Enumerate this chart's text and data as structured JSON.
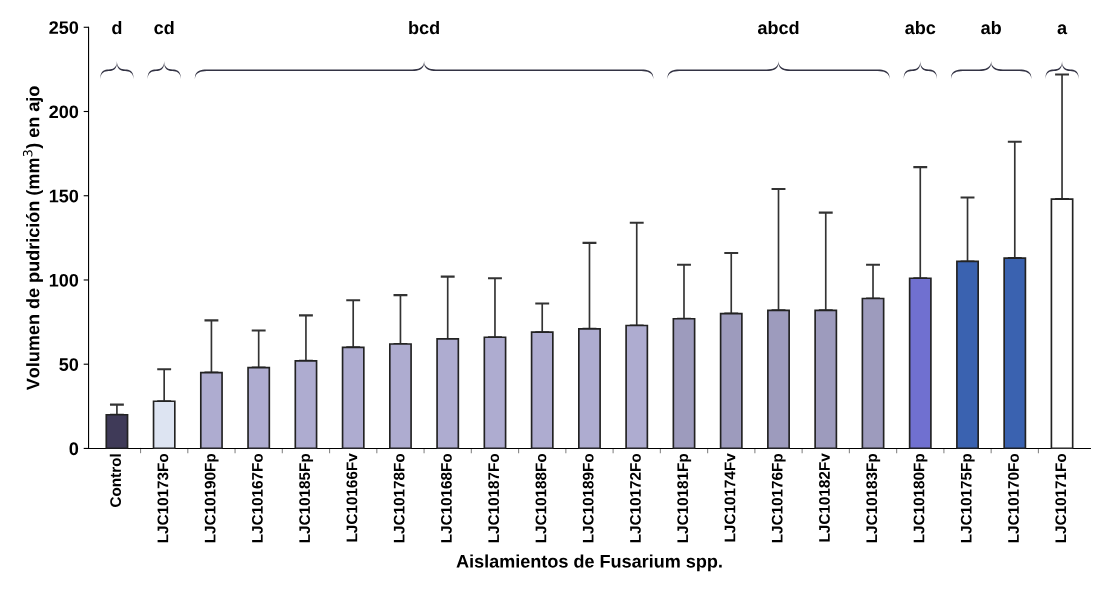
{
  "chart_data": {
    "type": "bar",
    "xlabel": "Aislamientos de Fusarium spp.",
    "ylabel": "Volumen de pudrición (mm$^{3}$) en ajo",
    "categories": [
      "Control",
      "LJC10173Fo",
      "LJC10190Fp",
      "LJC10167Fo",
      "LJC10185Fp",
      "LJC10166Fv",
      "LJC10178Fo",
      "LJC10168Fo",
      "LJC10187Fo",
      "LJC10188Fo",
      "LJC10189Fo",
      "LJC10172Fo",
      "LJC10181Fp",
      "LJC10174Fv",
      "LJC10176Fp",
      "LJC10182Fv",
      "LJC10183Fp",
      "LJC10180Fp",
      "LJC10175Fp",
      "LJC10170Fo",
      "LJC10171Fo"
    ],
    "values": [
      20,
      28,
      45,
      48,
      52,
      60,
      62,
      65,
      66,
      69,
      71,
      73,
      77,
      80,
      82,
      82,
      89,
      101,
      111,
      113,
      148
    ],
    "errors": [
      [
        20,
        26
      ],
      [
        28,
        47
      ],
      [
        45,
        76
      ],
      [
        48,
        70
      ],
      [
        52,
        79
      ],
      [
        60,
        88
      ],
      [
        62,
        91
      ],
      [
        65,
        102
      ],
      [
        66,
        101
      ],
      [
        69,
        86
      ],
      [
        71,
        122
      ],
      [
        73,
        134
      ],
      [
        77,
        109
      ],
      [
        80,
        116
      ],
      [
        82,
        154
      ],
      [
        82,
        140
      ],
      [
        89,
        109
      ],
      [
        101,
        167
      ],
      [
        111,
        149
      ],
      [
        113,
        182
      ],
      [
        148,
        222
      ]
    ],
    "colors": [
      "#3f3a58",
      "#dde4f2",
      "#aeacd0",
      "#aeacd0",
      "#aeacd0",
      "#aeacd0",
      "#aeacd0",
      "#aeacd0",
      "#aeacd0",
      "#aeacd0",
      "#aeacd0",
      "#aeacd0",
      "#9d9bbd",
      "#9d9bbd",
      "#9d9bbd",
      "#9d9bbd",
      "#9d9bbd",
      "#7070d0",
      "#3a62b0",
      "#3a62b0",
      "#ffffff"
    ],
    "ylim": [
      0,
      250
    ],
    "yticks": [
      0,
      50,
      100,
      150,
      200,
      250
    ],
    "annotations": [
      "d",
      "cd",
      "bcd",
      "abcd",
      "abc",
      "ab",
      "a"
    ]
  }
}
